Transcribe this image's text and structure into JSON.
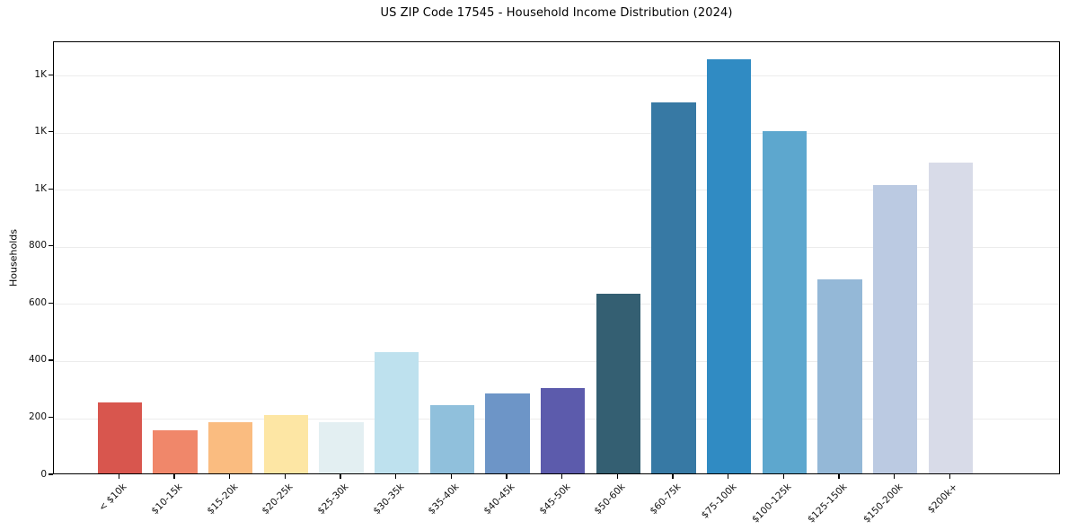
{
  "title": "US ZIP Code 17545 - Household Income Distribution (2024)",
  "chart_data": {
    "type": "bar",
    "title": "US ZIP Code 17545 - Household Income Distribution (2024)",
    "xlabel": "",
    "ylabel": "Households",
    "categories": [
      "< $10k",
      "$10-15k",
      "$15-20k",
      "$20-25k",
      "$25-30k",
      "$30-35k",
      "$35-40k",
      "$40-45k",
      "$45-50k",
      "$50-60k",
      "$60-75k",
      "$75-100k",
      "$100-125k",
      "$125-150k",
      "$150-200k",
      "$200k+"
    ],
    "values": [
      250,
      150,
      180,
      205,
      180,
      425,
      240,
      280,
      300,
      630,
      1300,
      1450,
      1200,
      680,
      1010,
      1090
    ],
    "bar_colors": [
      "#d8564e",
      "#f0876a",
      "#fabc80",
      "#fde6a4",
      "#e3eff2",
      "#bee1ee",
      "#90c0dc",
      "#6d95c7",
      "#5c5bac",
      "#345f72",
      "#3779a4",
      "#308bc3",
      "#5da7ce",
      "#94b8d7",
      "#bbcae2",
      "#d8dbe8"
    ],
    "ylim": [
      0,
      1517
    ],
    "y_ticks": [
      {
        "value": 0,
        "label": "0"
      },
      {
        "value": 200,
        "label": "200"
      },
      {
        "value": 400,
        "label": "400"
      },
      {
        "value": 600,
        "label": "600"
      },
      {
        "value": 800,
        "label": "800"
      },
      {
        "value": 1000,
        "label": "1K"
      },
      {
        "value": 1200,
        "label": "1K"
      },
      {
        "value": 1400,
        "label": "1K"
      }
    ],
    "grid": true,
    "legend_position": "none"
  },
  "colors": {
    "background": "#ffffff",
    "grid": "#ececec",
    "spine": "#000000",
    "tick_text": "#111111"
  }
}
